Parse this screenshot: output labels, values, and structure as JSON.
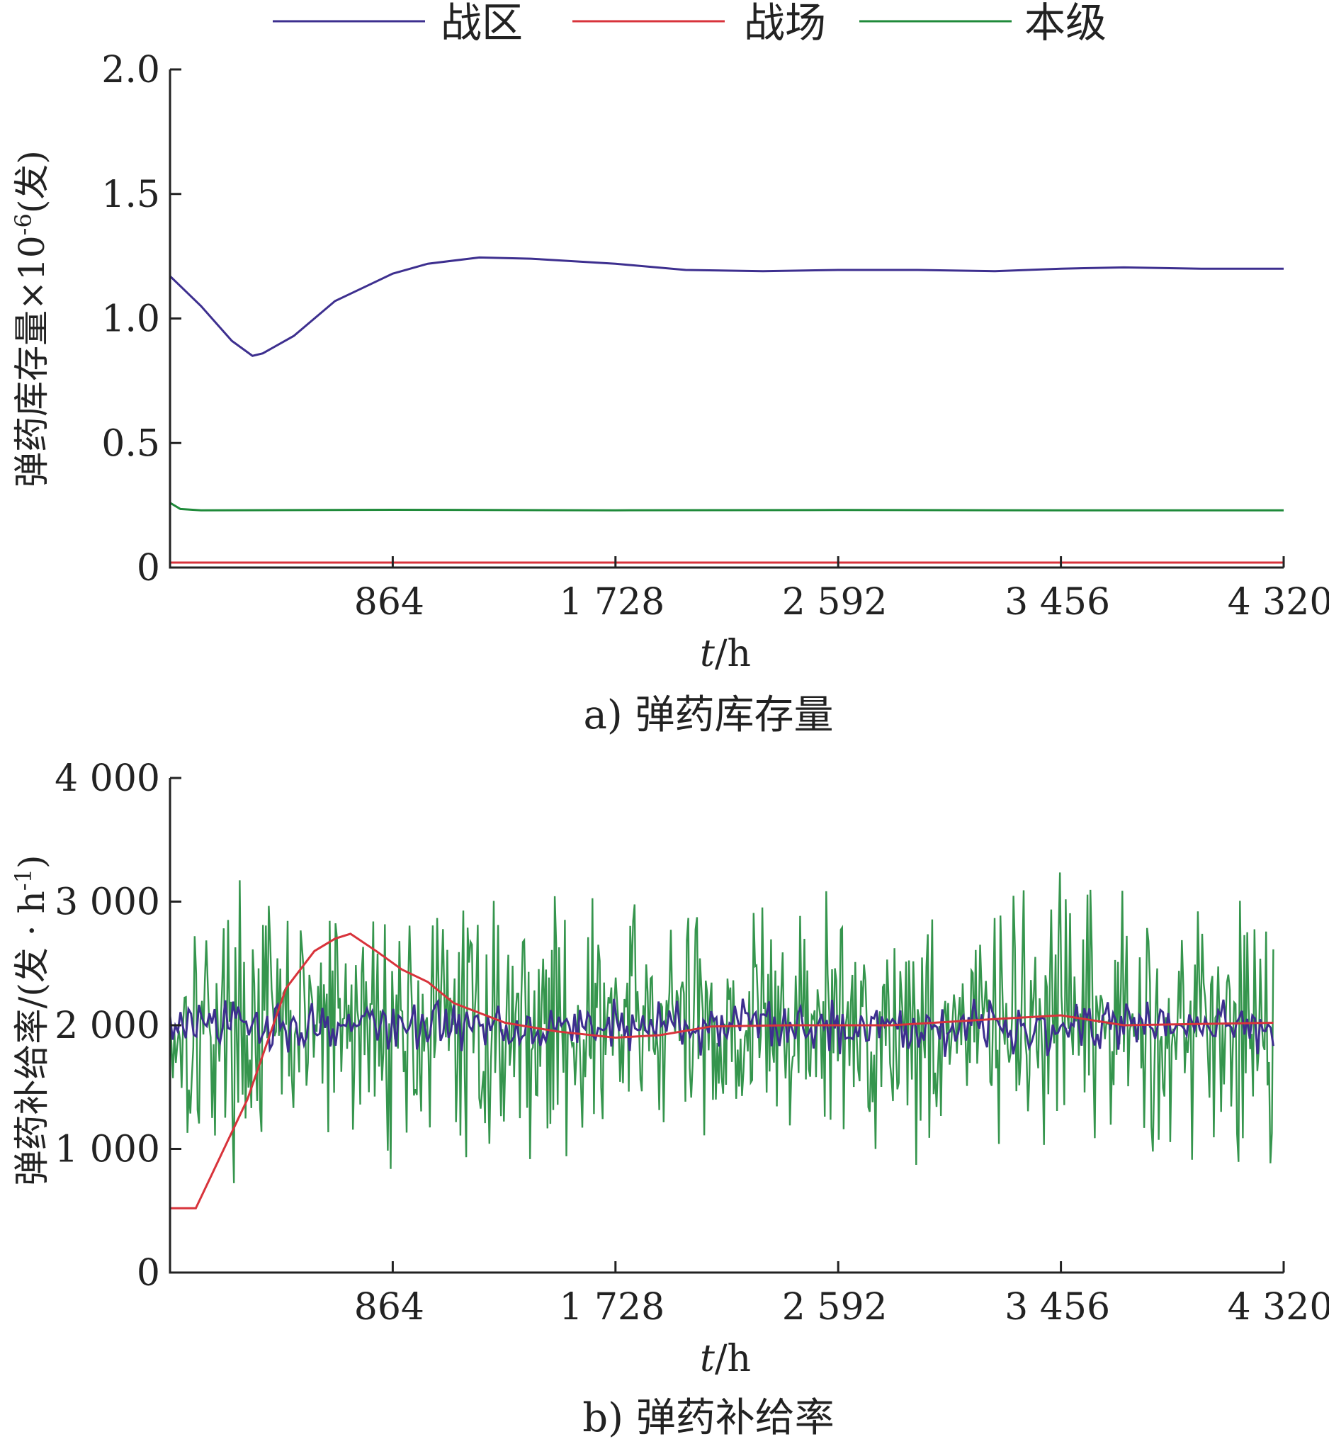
{
  "legend": {
    "items": [
      {
        "label": "战区",
        "color": "#3d2f8f"
      },
      {
        "label": "战场",
        "color": "#d8333b"
      },
      {
        "label": "本级",
        "color": "#1f8a3a"
      }
    ]
  },
  "chart_data": [
    {
      "type": "line",
      "caption": "a) 弹药库存量",
      "ylabel_text": "弹药库存量×10",
      "ylabel_exp": "-6",
      "ylabel_unit": "(发)",
      "xlabel_var": "t",
      "xlabel_unit": "/h",
      "xlim": [
        0,
        4320
      ],
      "ylim": [
        0,
        2.0
      ],
      "xticks": [
        864,
        1728,
        2592,
        3456,
        4320
      ],
      "xtick_labels": [
        "864",
        "1 728",
        "2 592",
        "3 456",
        "4 320"
      ],
      "yticks": [
        0,
        0.5,
        1.0,
        1.5,
        2.0
      ],
      "ytick_labels": [
        "0",
        "0.5",
        "1.0",
        "1.5",
        "2.0"
      ],
      "series": [
        {
          "name": "战区",
          "color": "#3d2f8f",
          "x": [
            0,
            120,
            240,
            320,
            360,
            480,
            640,
            864,
            1000,
            1200,
            1400,
            1728,
            2000,
            2300,
            2592,
            2900,
            3200,
            3456,
            3700,
            4000,
            4320
          ],
          "y": [
            1.17,
            1.05,
            0.91,
            0.85,
            0.86,
            0.93,
            1.07,
            1.18,
            1.22,
            1.245,
            1.24,
            1.22,
            1.195,
            1.19,
            1.195,
            1.195,
            1.19,
            1.2,
            1.205,
            1.2,
            1.2
          ]
        },
        {
          "name": "战场",
          "color": "#d8333b",
          "x": [
            0,
            864,
            1728,
            2592,
            3456,
            4320
          ],
          "y": [
            0.02,
            0.02,
            0.02,
            0.02,
            0.02,
            0.02
          ]
        },
        {
          "name": "本级",
          "color": "#1f8a3a",
          "x": [
            0,
            40,
            120,
            864,
            1728,
            2592,
            3456,
            4320
          ],
          "y": [
            0.26,
            0.235,
            0.23,
            0.232,
            0.23,
            0.231,
            0.23,
            0.23
          ]
        }
      ]
    },
    {
      "type": "line",
      "caption": "b) 弹药补给率",
      "ylabel_text": "弹药补给率/(发",
      "ylabel_mid": " · h",
      "ylabel_exp": "-1",
      "ylabel_close": ")",
      "xlabel_var": "t",
      "xlabel_unit": "/h",
      "xlim": [
        0,
        4320
      ],
      "ylim": [
        0,
        4000
      ],
      "xticks": [
        864,
        1728,
        2592,
        3456,
        4320
      ],
      "xtick_labels": [
        "864",
        "1 728",
        "2 592",
        "3 456",
        "4 320"
      ],
      "yticks": [
        0,
        1000,
        2000,
        3000,
        4000
      ],
      "ytick_labels": [
        "0",
        "1 000",
        "2 000",
        "3 000",
        "4 000"
      ],
      "series": [
        {
          "name": "本级",
          "color": "#1f8a3a",
          "x_range": [
            0,
            4280
          ],
          "mean": 2000,
          "amplitude": 1400
        },
        {
          "name": "战区",
          "color": "#3d2f8f",
          "x_range": [
            0,
            4280
          ],
          "mean": 2000,
          "amplitude": 300
        },
        {
          "name": "战场",
          "color": "#d8333b",
          "x": [
            0,
            100,
            300,
            450,
            560,
            640,
            700,
            800,
            900,
            1000,
            1100,
            1300,
            1500,
            1728,
            1900,
            2100,
            2400,
            2800,
            3200,
            3456,
            3700,
            4280
          ],
          "y": [
            520,
            520,
            1400,
            2300,
            2600,
            2700,
            2740,
            2600,
            2450,
            2350,
            2180,
            2020,
            1950,
            1900,
            1920,
            1990,
            2000,
            2000,
            2050,
            2080,
            2000,
            2020
          ]
        }
      ]
    }
  ]
}
